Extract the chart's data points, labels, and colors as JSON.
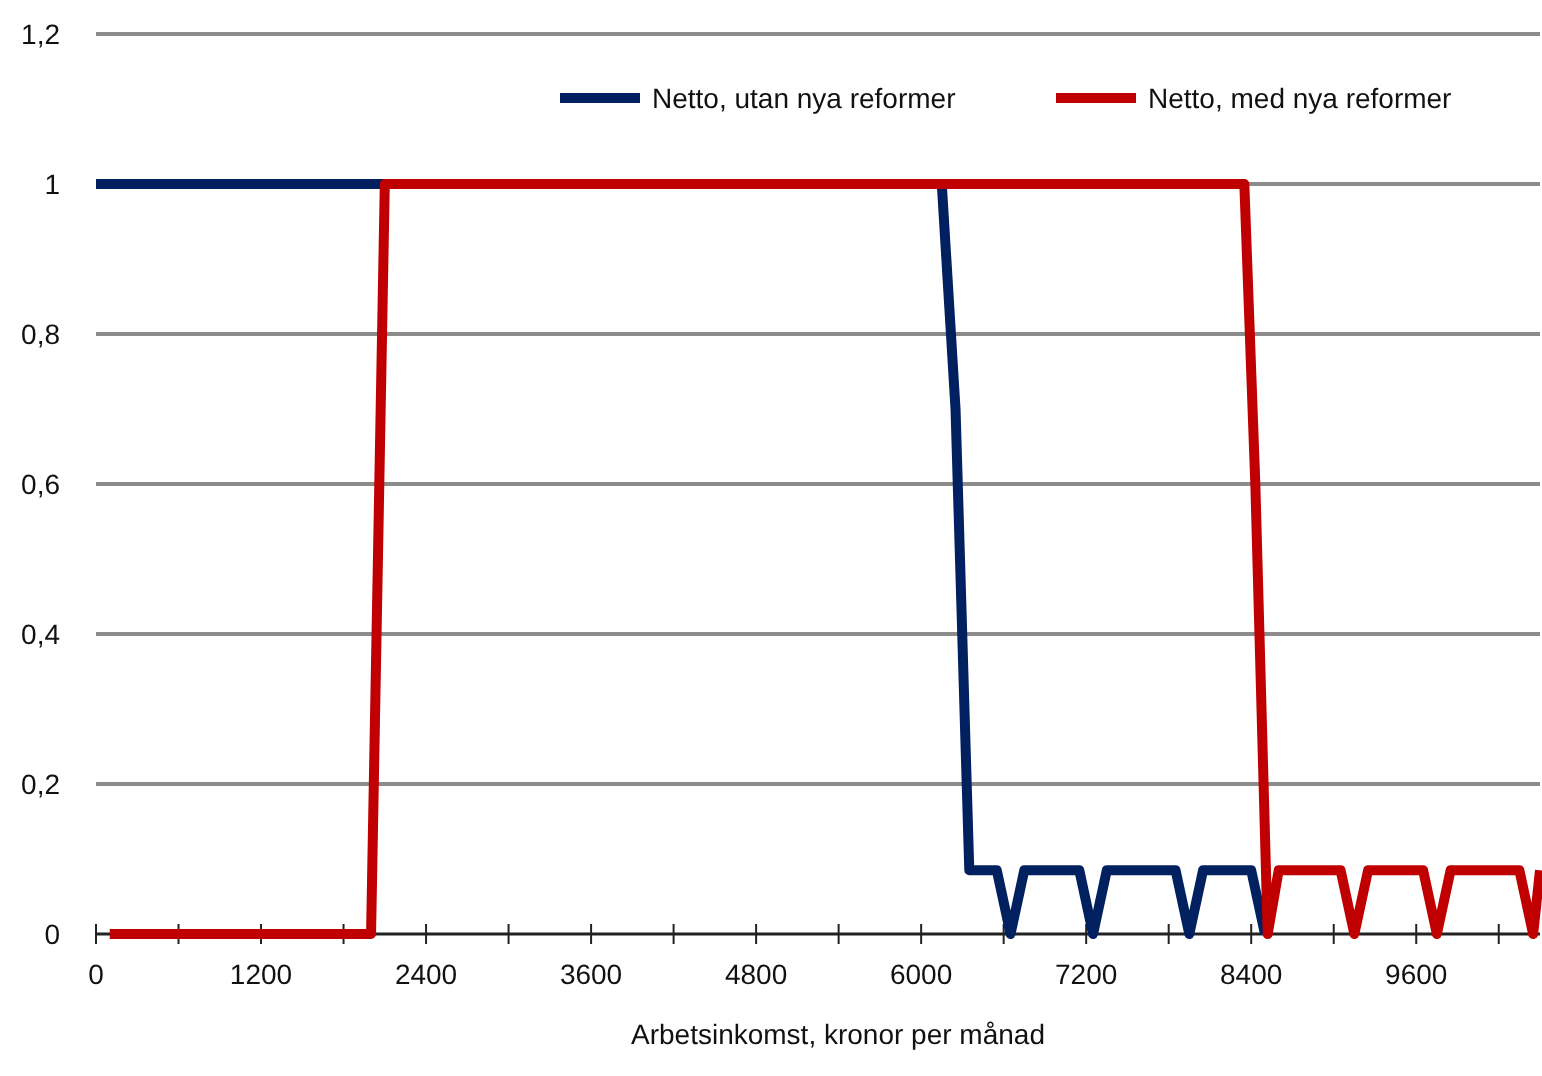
{
  "chart_data": {
    "type": "line",
    "xlabel": "Arbetsinkomst, kronor per månad",
    "xlim": [
      0,
      10500
    ],
    "xticks": [
      0,
      {
        "value": 600,
        "label": null
      },
      1200,
      {
        "value": 1800,
        "label": null
      },
      2400,
      {
        "value": 3000,
        "label": null
      },
      3600,
      {
        "value": 4200,
        "label": null
      },
      4800,
      {
        "value": 5400,
        "label": null
      },
      6000,
      {
        "value": 6600,
        "label": null
      },
      7200,
      {
        "value": 7800,
        "label": null
      },
      8400,
      {
        "value": 9000,
        "label": null
      },
      9600,
      {
        "value": 10200,
        "label": null
      }
    ],
    "ylim": [
      0,
      1.2
    ],
    "yticks": [
      0,
      {
        "value": 0.2,
        "label": "0,2"
      },
      {
        "value": 0.4,
        "label": "0,4"
      },
      {
        "value": 0.6,
        "label": "0,6"
      },
      {
        "value": 0.8,
        "label": "0,8"
      },
      1,
      {
        "value": 1.2,
        "label": "1,2"
      }
    ],
    "grid": "y",
    "legend": "top right",
    "marker": "none",
    "line_style": "solid",
    "series": [
      {
        "name": "Netto, utan nya reformer",
        "color": "#002060",
        "x": [
          0,
          6150,
          6250,
          6350,
          6550,
          6650,
          6750,
          7150,
          7250,
          7350,
          7850,
          7950,
          8050,
          8400,
          8500
        ],
        "values": [
          1,
          1,
          0.7,
          0.085,
          0.085,
          0,
          0.085,
          0.085,
          0,
          0.085,
          0.085,
          0,
          0.085,
          0.085,
          0
        ]
      },
      {
        "name": "Netto, med nya reformer",
        "color": "#c00000",
        "x": [
          100,
          2000,
          2100,
          8350,
          8430,
          8520,
          8600,
          9050,
          9150,
          9250,
          9650,
          9750,
          9850,
          10350,
          10450,
          10500
        ],
        "values": [
          0,
          0,
          1,
          1,
          0.6,
          0,
          0.085,
          0.085,
          0,
          0.085,
          0.085,
          0,
          0.085,
          0.085,
          0,
          0.085
        ]
      }
    ]
  }
}
